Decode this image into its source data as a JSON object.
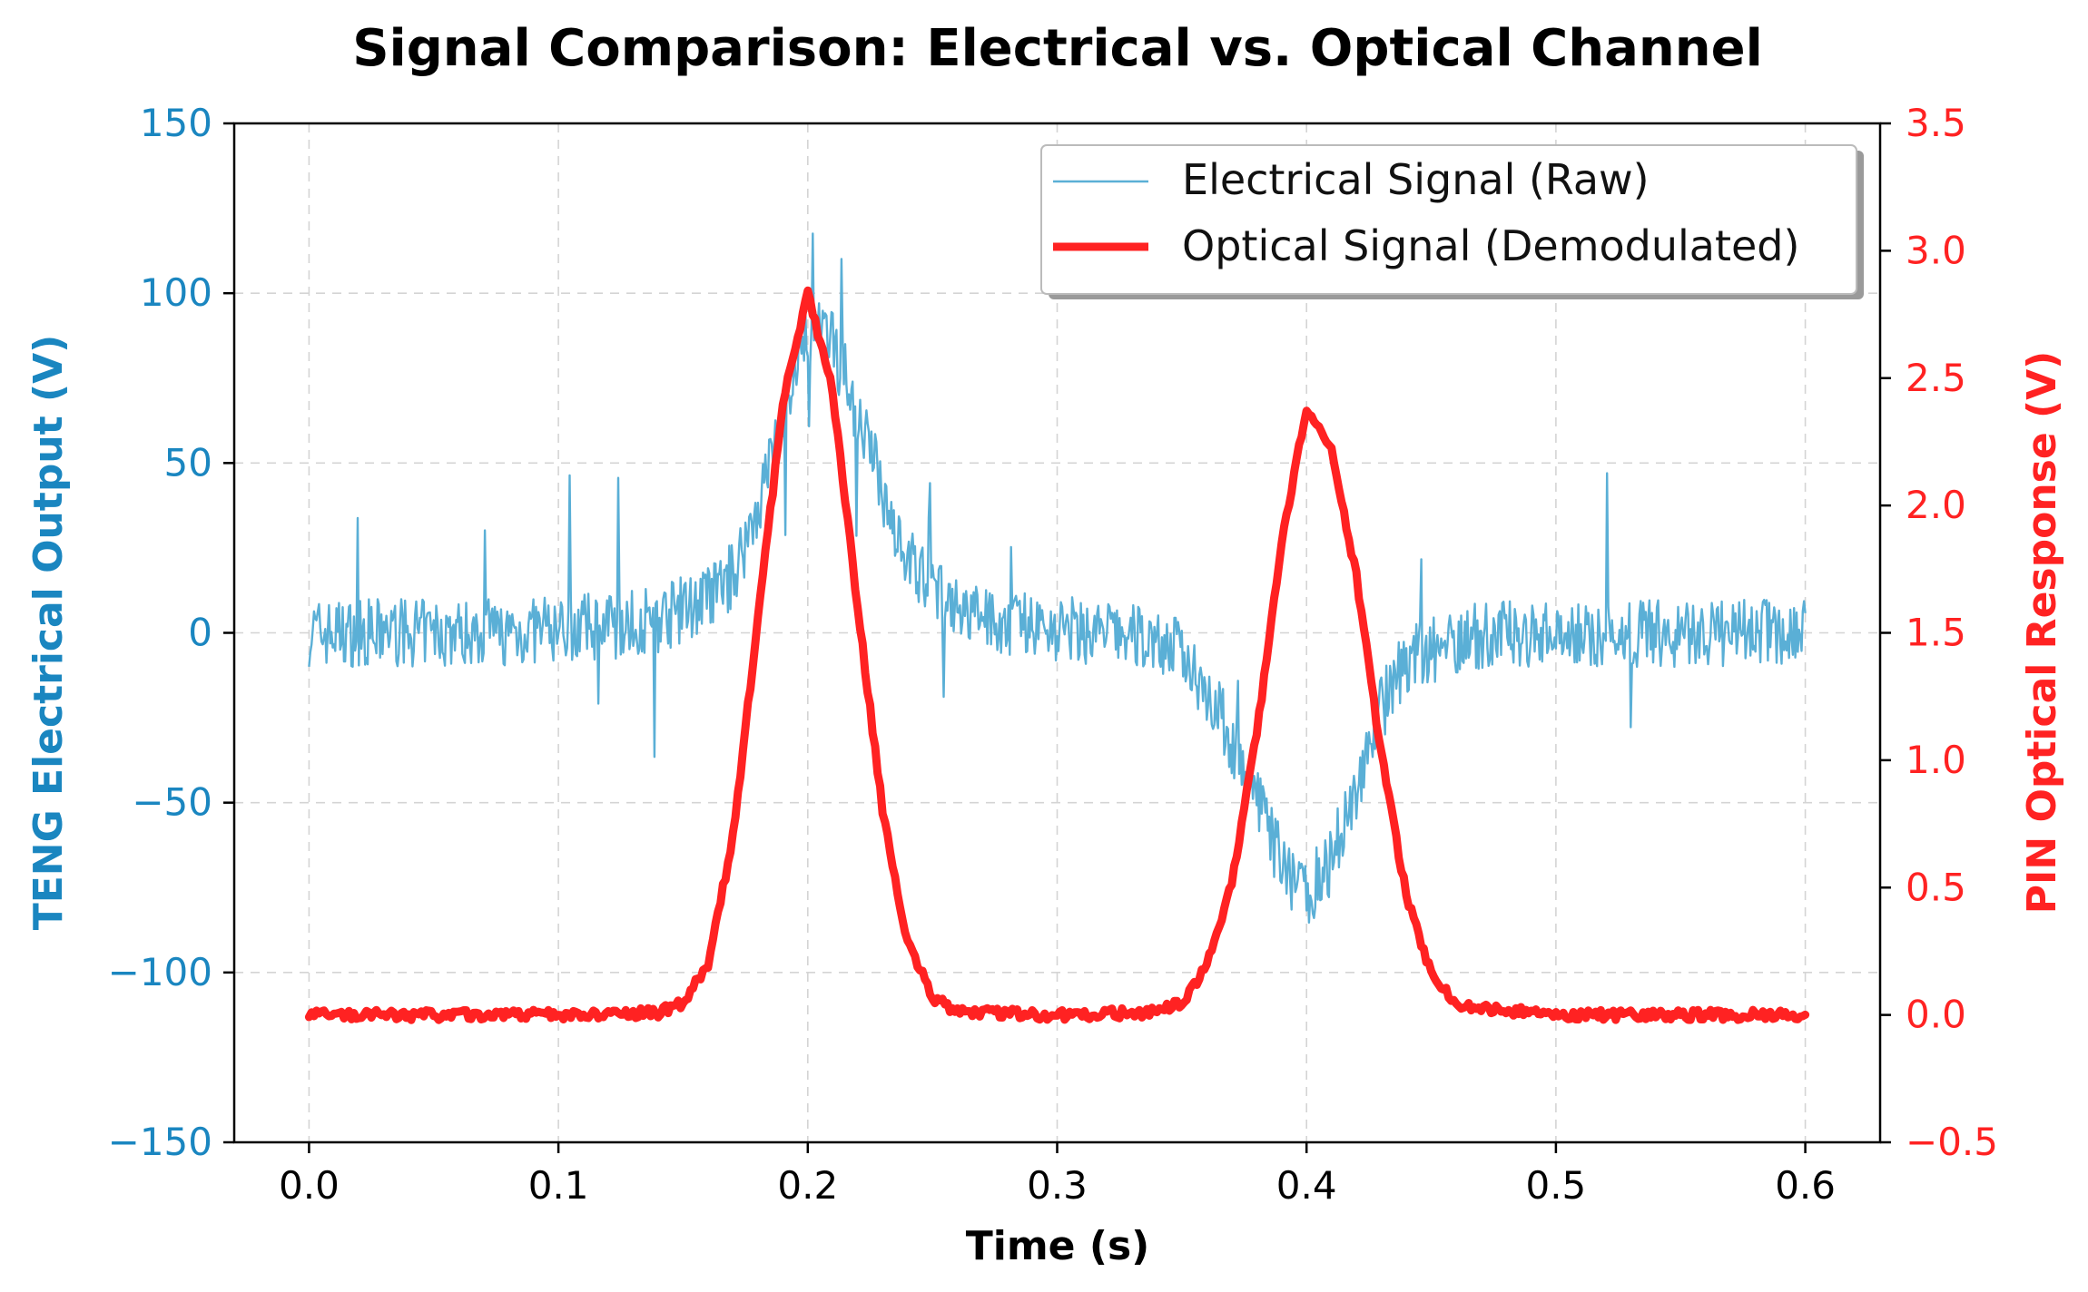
{
  "chart_data": {
    "type": "line",
    "title": "Signal Comparison: Electrical vs. Optical Channel",
    "xlabel": "Time (s)",
    "ylabel_left": "TENG Electrical Output (V)",
    "ylabel_right": "PIN Optical Response (V)",
    "xlim": [
      -0.03,
      0.63
    ],
    "ylim_left": [
      -150,
      150
    ],
    "ylim_right": [
      -0.5,
      3.5
    ],
    "x_ticks": [
      0.0,
      0.1,
      0.2,
      0.3,
      0.4,
      0.5,
      0.6
    ],
    "x_tick_labels": [
      "0.0",
      "0.1",
      "0.2",
      "0.3",
      "0.4",
      "0.5",
      "0.6"
    ],
    "y_left_ticks": [
      150,
      100,
      50,
      0,
      -50,
      -100,
      -150
    ],
    "y_left_tick_labels": [
      "150",
      "100",
      "50",
      "0",
      "−50",
      "−100",
      "−150"
    ],
    "y_right_ticks": [
      3.5,
      3.0,
      2.5,
      2.0,
      1.5,
      1.0,
      0.5,
      0.0,
      -0.5
    ],
    "y_right_tick_labels": [
      "3.5",
      "3.0",
      "2.5",
      "2.0",
      "1.5",
      "1.0",
      "0.5",
      "0.0",
      "−0.5"
    ],
    "grid": true,
    "legend_position": "top-right",
    "colors": {
      "electrical": "#5aafd6",
      "optical": "#ff2222",
      "left_axis": "#1a86c0",
      "right_axis": "#ff2222"
    },
    "series": [
      {
        "name": "Electrical Signal (Raw)",
        "axis": "left",
        "x": [
          0.0,
          0.02,
          0.04,
          0.06,
          0.08,
          0.1,
          0.12,
          0.14,
          0.16,
          0.17,
          0.18,
          0.19,
          0.2,
          0.21,
          0.22,
          0.23,
          0.24,
          0.25,
          0.26,
          0.28,
          0.3,
          0.32,
          0.34,
          0.35,
          0.36,
          0.37,
          0.38,
          0.39,
          0.4,
          0.41,
          0.42,
          0.43,
          0.44,
          0.46,
          0.48,
          0.5,
          0.52,
          0.54,
          0.56,
          0.58,
          0.6
        ],
        "values": [
          0,
          0,
          0,
          0,
          0,
          1,
          2,
          4,
          10,
          17,
          37,
          65,
          90,
          85,
          65,
          42,
          22,
          12,
          6,
          3,
          1,
          0,
          -2,
          -6,
          -16,
          -32,
          -50,
          -68,
          -77,
          -67,
          -45,
          -22,
          -8,
          -2,
          0,
          0,
          0,
          0,
          0,
          0,
          0
        ],
        "noise_amplitude": 10
      },
      {
        "name": "Optical Signal (Demodulated)",
        "axis": "right",
        "x": [
          0.0,
          0.05,
          0.1,
          0.14,
          0.15,
          0.16,
          0.17,
          0.18,
          0.19,
          0.2,
          0.21,
          0.22,
          0.23,
          0.24,
          0.25,
          0.26,
          0.3,
          0.34,
          0.35,
          0.36,
          0.37,
          0.38,
          0.39,
          0.4,
          0.41,
          0.42,
          0.43,
          0.44,
          0.45,
          0.46,
          0.5,
          0.55,
          0.6
        ],
        "values": [
          0,
          0,
          0,
          0.01,
          0.05,
          0.2,
          0.7,
          1.55,
          2.4,
          2.83,
          2.45,
          1.6,
          0.8,
          0.28,
          0.07,
          0.01,
          0,
          0.01,
          0.05,
          0.19,
          0.52,
          1.1,
          1.85,
          2.38,
          2.22,
          1.72,
          1.02,
          0.47,
          0.16,
          0.04,
          0,
          0,
          0
        ],
        "noise_amplitude": 0.02
      }
    ]
  }
}
